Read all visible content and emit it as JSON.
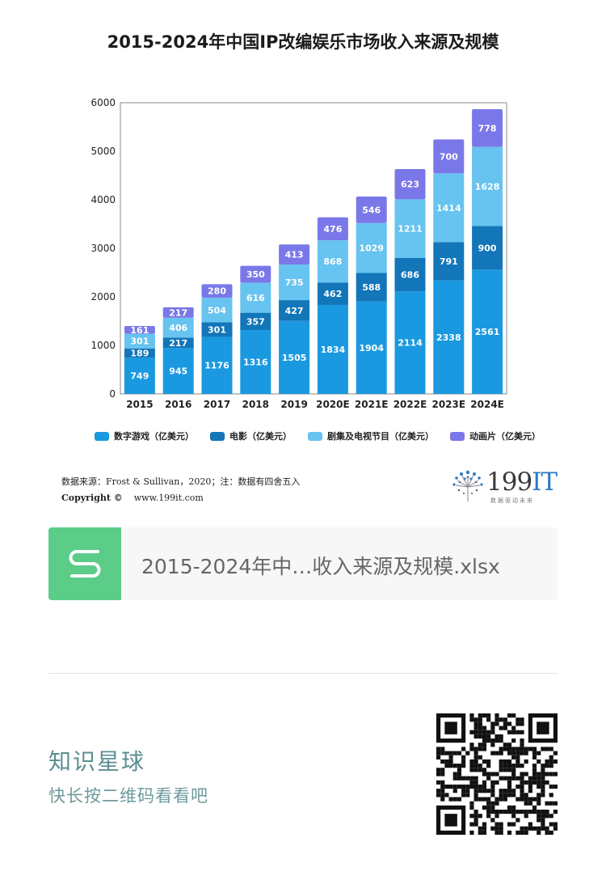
{
  "chart_data": {
    "type": "bar",
    "stacked": true,
    "title": "2015-2024年中国IP改编娱乐市场收入来源及规模",
    "categories": [
      "2015",
      "2016",
      "2017",
      "2018",
      "2019",
      "2020E",
      "2021E",
      "2022E",
      "2023E",
      "2024E"
    ],
    "series": [
      {
        "name": "数字游戏（亿美元）",
        "color": "#1a99e0",
        "values": [
          749,
          945,
          1176,
          1316,
          1505,
          1834,
          1904,
          2114,
          2338,
          2561
        ]
      },
      {
        "name": "电影（亿美元）",
        "color": "#1276b9",
        "values": [
          189,
          217,
          301,
          357,
          427,
          462,
          588,
          686,
          791,
          900
        ]
      },
      {
        "name": "剧集及电视节目（亿美元）",
        "color": "#67c3ef",
        "values": [
          301,
          406,
          504,
          616,
          735,
          868,
          1029,
          1211,
          1414,
          1628
        ]
      },
      {
        "name": "动画片（亿美元）",
        "color": "#7a78e8",
        "values": [
          161,
          217,
          280,
          350,
          413,
          476,
          546,
          623,
          700,
          778
        ]
      }
    ],
    "ylim": [
      0,
      6000
    ],
    "yticks": [
      "0",
      "1000",
      "2000",
      "3000",
      "4000",
      "5000",
      "6000"
    ],
    "grid": false,
    "legend_position": "bottom"
  },
  "source": {
    "label": "数据来源：Frost & Sullivan，2020；注：数据有四舍五入",
    "copyright_label": "Copyright ©",
    "website": "www.199it.com"
  },
  "logo": {
    "text_main": "199",
    "text_accent": "IT",
    "slogan": "数据驱动未来"
  },
  "file": {
    "name": "2015-2024年中…收入来源及规模.xlsx",
    "icon": "spreadsheet-s-icon"
  },
  "promo": {
    "title": "知识星球",
    "subtitle": "快长按二维码看看吧"
  }
}
